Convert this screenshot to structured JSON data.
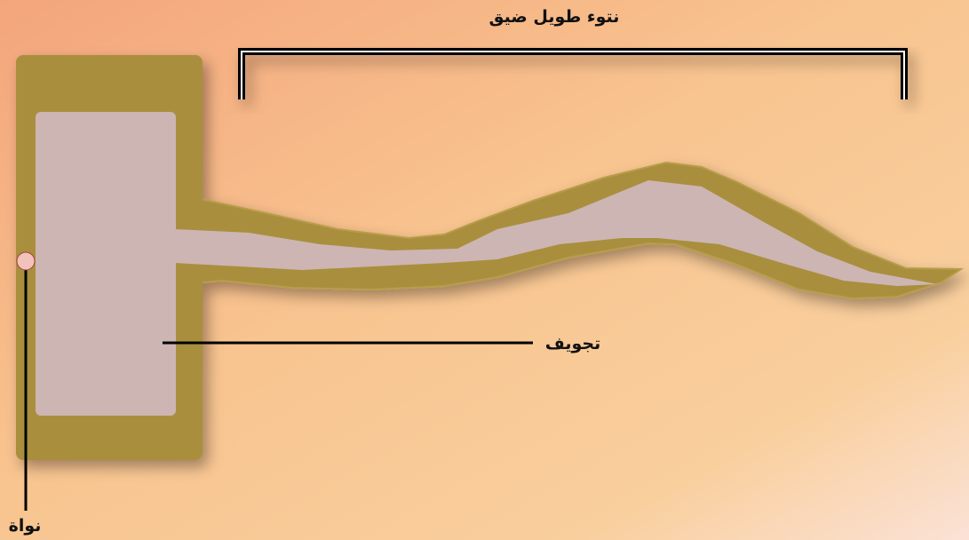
{
  "labels": {
    "title": "نتوء طويل ضيق",
    "cavity": "تجويف",
    "nucleus": "نواة"
  }
}
